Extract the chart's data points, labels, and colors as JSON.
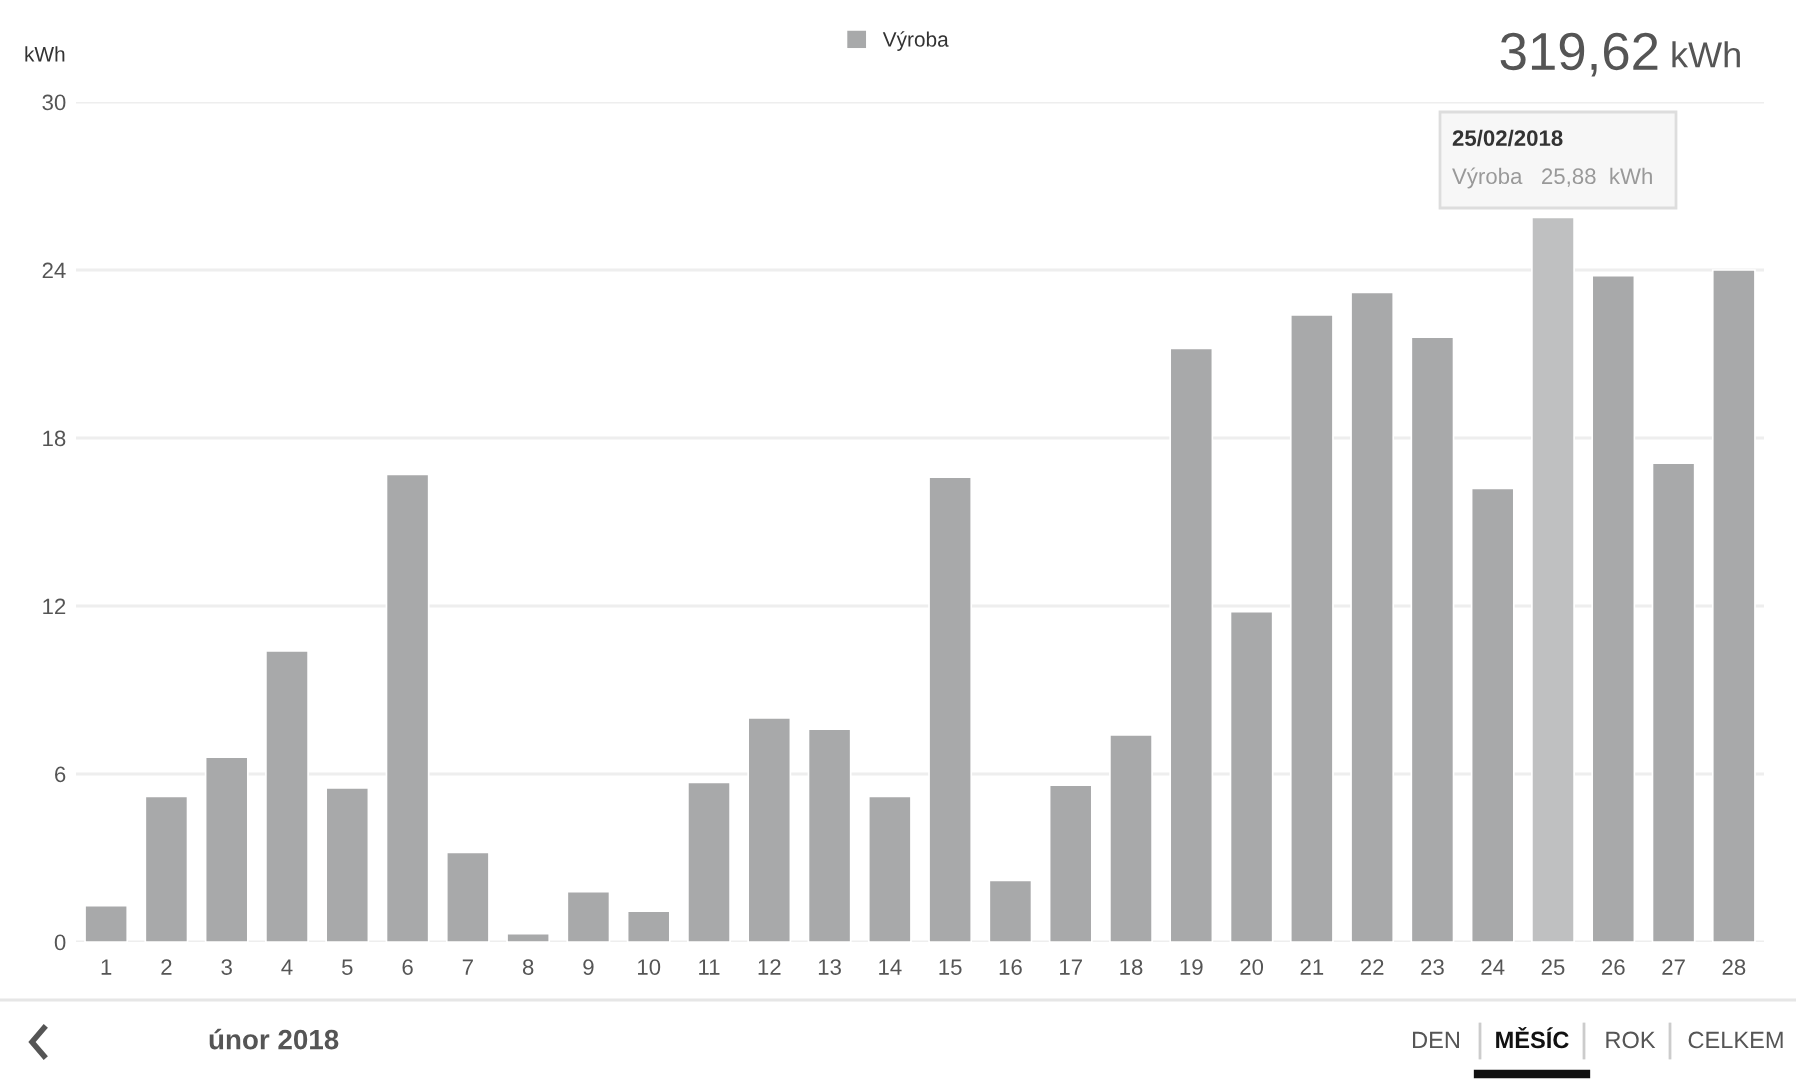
{
  "chart_data": {
    "type": "bar",
    "ylabel": "kWh",
    "categories": [
      "1",
      "2",
      "3",
      "4",
      "5",
      "6",
      "7",
      "8",
      "9",
      "10",
      "11",
      "12",
      "13",
      "14",
      "15",
      "16",
      "17",
      "18",
      "19",
      "20",
      "21",
      "22",
      "23",
      "24",
      "25",
      "26",
      "27",
      "28"
    ],
    "series": [
      {
        "name": "Výroba",
        "color": "#a8a9aa",
        "colors": [
          "#a8a9aa",
          "#a8a9aa",
          "#a8a9aa",
          "#a8a9aa",
          "#a8a9aa",
          "#a8a9aa",
          "#a8a9aa",
          "#a8a9aa",
          "#a8a9aa",
          "#a8a9aa",
          "#a8a9aa",
          "#a8a9aa",
          "#a8a9aa",
          "#a8a9aa",
          "#a8a9aa",
          "#a8a9aa",
          "#a8a9aa",
          "#a8a9aa",
          "#a8a9aa",
          "#a8a9aa",
          "#a8a9aa",
          "#a8a9aa",
          "#a8a9aa",
          "#a8a9aa",
          "#bfc0c1",
          "#a8a9aa",
          "#a8a9aa",
          "#a8a9aa"
        ],
        "values": [
          1.3,
          5.2,
          6.6,
          10.4,
          5.5,
          16.7,
          3.2,
          0.3,
          1.8,
          1.1,
          5.7,
          8.0,
          7.6,
          5.2,
          16.6,
          2.2,
          5.6,
          7.4,
          21.2,
          11.8,
          22.4,
          23.2,
          21.6,
          16.2,
          25.88,
          23.8,
          17.1,
          24.0
        ]
      }
    ],
    "ylim": [
      0,
      30
    ],
    "yticks": [
      0,
      6,
      12,
      18,
      24,
      30
    ],
    "grid": "y",
    "legend": "top",
    "annotations": [
      "319,62",
      "kWh",
      "únor 2018",
      "DEN",
      "MĚSÍC",
      "ROK",
      "CELKEM",
      "25/02/2018",
      "Výroba   25,88  kWh"
    ]
  }
}
